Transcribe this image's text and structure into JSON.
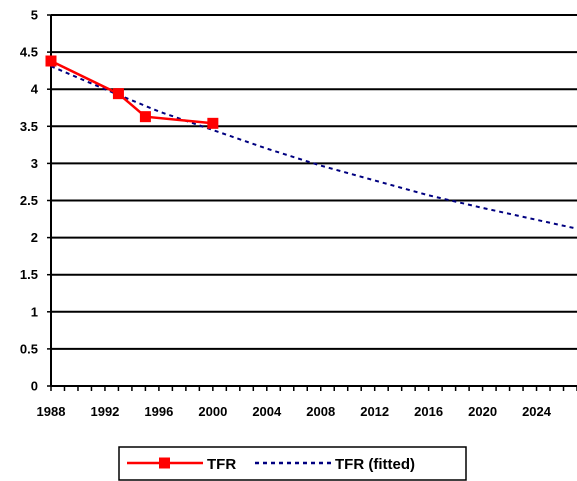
{
  "chart_data": {
    "type": "line",
    "title": "",
    "xlabel": "",
    "ylabel": "",
    "xlim": [
      1988,
      2027
    ],
    "ylim": [
      0,
      5
    ],
    "x_ticks": [
      1988,
      1992,
      1996,
      2000,
      2004,
      2008,
      2012,
      2016,
      2020,
      2024
    ],
    "y_ticks": [
      0,
      0.5,
      1,
      1.5,
      2,
      2.5,
      3,
      3.5,
      4,
      4.5,
      5
    ],
    "y_tick_labels": [
      "0",
      "0.5",
      "1",
      "1.5",
      "2",
      "2.5",
      "3",
      "3.5",
      "4",
      "4.5",
      "5"
    ],
    "grid": "horizontal",
    "legend_position": "bottom",
    "series": [
      {
        "name": "TFR",
        "style": "solid-line-square-markers",
        "color": "#ff0000",
        "x": [
          1988,
          1993,
          1995,
          2000
        ],
        "y": [
          4.38,
          3.94,
          3.63,
          3.54
        ]
      },
      {
        "name": "TFR (fitted)",
        "style": "dotted-line",
        "color": "#000080",
        "x": [
          1988,
          1992,
          1996,
          2000,
          2004,
          2008,
          2012,
          2016,
          2020,
          2024,
          2027
        ],
        "y": [
          4.31,
          4.0,
          3.7,
          3.45,
          3.2,
          2.97,
          2.77,
          2.57,
          2.4,
          2.24,
          2.12
        ]
      }
    ]
  }
}
